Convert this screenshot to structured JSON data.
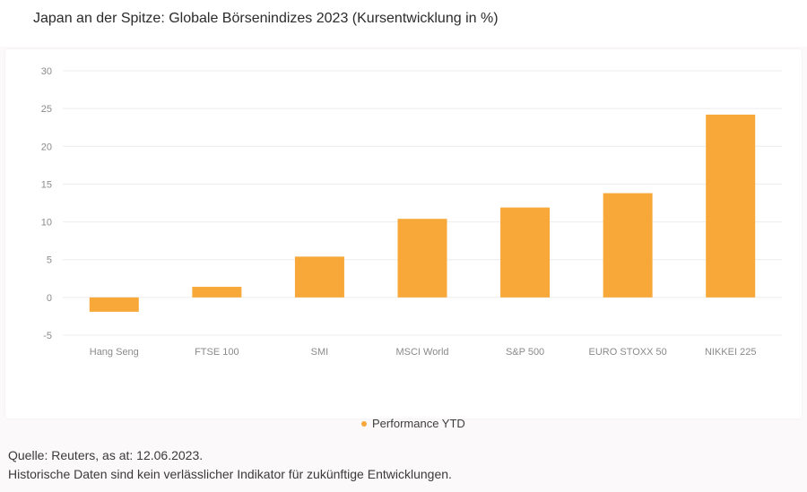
{
  "header": {
    "title": "Japan an der Spitze: Globale Börsenindizes 2023 (Kursentwicklung in %)"
  },
  "chart_data": {
    "type": "bar",
    "categories": [
      "Hang Seng",
      "FTSE 100",
      "SMI",
      "MSCI World",
      "S&P 500",
      "EURO STOXX 50",
      "NIKKEI 225"
    ],
    "series": [
      {
        "name": "Performance YTD",
        "values": [
          -1.9,
          1.4,
          5.4,
          10.4,
          11.9,
          13.8,
          24.2
        ],
        "color": "#f7a838"
      }
    ],
    "title": "Japan an der Spitze: Globale Börsenindizes 2023 (Kursentwicklung in %)",
    "xlabel": "",
    "ylabel": "",
    "ylim": [
      -5,
      30
    ],
    "yticks": [
      -5,
      0,
      5,
      10,
      15,
      20,
      25,
      30
    ],
    "grid": true,
    "legend_position": "bottom-center"
  },
  "footer": {
    "source": "Quelle: Reuters, as at: 12.06.2023.",
    "disclaimer": "Historische Daten sind kein verlässlicher Indikator für zukünftige Entwicklungen."
  },
  "colors": {
    "bar": "#f7a838",
    "grid": "#ececec",
    "tick_text": "#8a8a8a",
    "background": "#fbf9f9"
  }
}
